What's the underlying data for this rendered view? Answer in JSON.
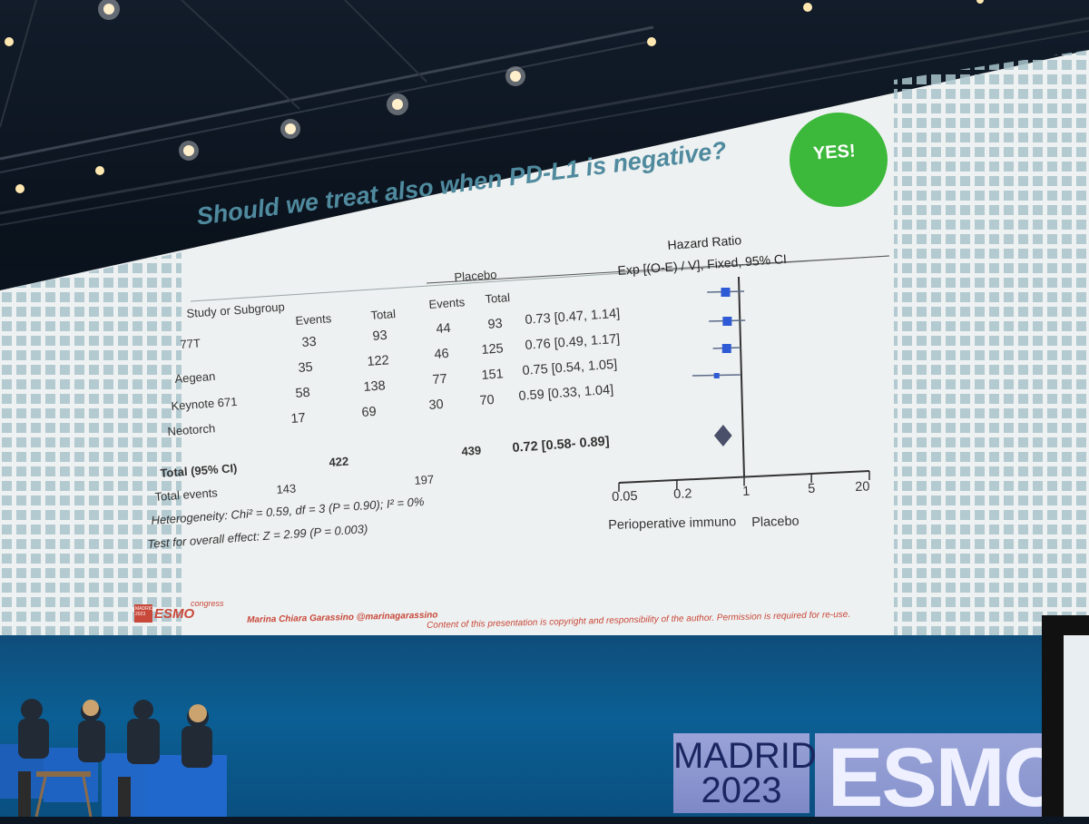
{
  "slide": {
    "title": "Should we treat also when PD-L1 is negative?",
    "badge": "YES!",
    "hr_heading": "Hazard Ratio",
    "hr_method": "Exp [(O-E) / V], Fixed, 95% CI",
    "group_placebo": "Placebo",
    "col_subgroup": "Study or Subgroup",
    "col_events1": "Events",
    "col_total1": "Total",
    "col_events2": "Events",
    "col_total2": "Total",
    "studies": [
      {
        "name": "77T",
        "ev1": "33",
        "tot1": "93",
        "ev2": "44",
        "tot2": "93",
        "ci": "0.73 [0.47, 1.14]"
      },
      {
        "name": "Aegean",
        "ev1": "35",
        "tot1": "122",
        "ev2": "46",
        "tot2": "125",
        "ci": "0.76 [0.49, 1.17]"
      },
      {
        "name": "Keynote 671",
        "ev1": "58",
        "tot1": "138",
        "ev2": "77",
        "tot2": "151",
        "ci": "0.75 [0.54, 1.05]"
      },
      {
        "name": "Neotorch",
        "ev1": "17",
        "tot1": "69",
        "ev2": "30",
        "tot2": "70",
        "ci": "0.59 [0.33, 1.04]"
      }
    ],
    "total_label": "Total (95% CI)",
    "total1": "422",
    "total2": "439",
    "total_ci": "0.72 [0.58- 0.89]",
    "total_events_label": "Total events",
    "total_events1": "143",
    "total_events2": "197",
    "heterogeneity": "Heterogeneity: Chi² = 0.59, df = 3 (P = 0.90); I² = 0%",
    "overall_effect": "Test for overall effect: Z = 2.99 (P = 0.003)",
    "axis_ticks": [
      "0.05",
      "0.2",
      "1",
      "5",
      "20"
    ],
    "favours_left": "Perioperative immuno",
    "favours_right": "Placebo",
    "footer_logo_city": "MADRID",
    "footer_logo_year": "2023",
    "footer_logo_brand": "ESMO",
    "footer_logo_suffix": "congress",
    "footer_author": "Marina Chiara Garassino @marinagarassino",
    "footer_copyright": "Content of this presentation is copyright and responsibility of the author. Permission is required for re-use."
  },
  "stage": {
    "banner_city": "MADRID",
    "banner_year": "2023",
    "banner_brand": "ESMO"
  },
  "colors": {
    "slide_bg": "#eef1f1",
    "title": "#4f8a9e",
    "badge": "#3cb83a",
    "marker": "#2e5ad6",
    "diamond": "#4a4f6a",
    "pattern": "#a9c3cb"
  }
}
